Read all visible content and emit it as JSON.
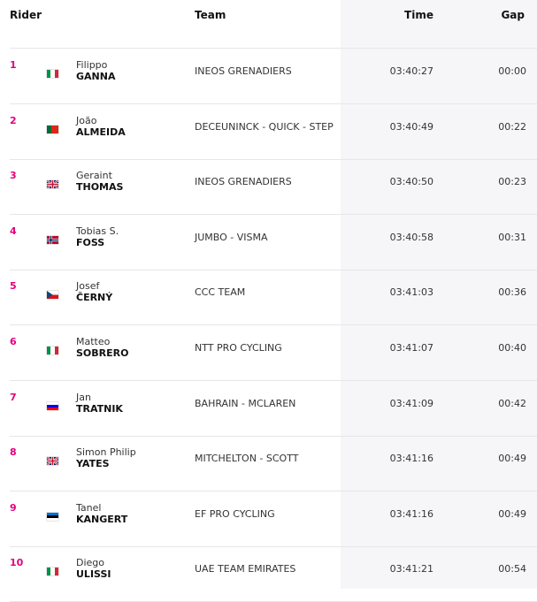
{
  "headers": {
    "rider": "Rider",
    "team": "Team",
    "time": "Time",
    "gap": "Gap"
  },
  "rows": [
    {
      "pos": "1",
      "first": "Filippo",
      "last": "GANNA",
      "flag": "italy-flag-icon",
      "team": "INEOS GRENADIERS",
      "time": "03:40:27",
      "gap": "00:00"
    },
    {
      "pos": "2",
      "first": "João",
      "last": "ALMEIDA",
      "flag": "portugal-flag-icon",
      "team": "DECEUNINCK - QUICK - STEP",
      "time": "03:40:49",
      "gap": "00:22"
    },
    {
      "pos": "3",
      "first": "Geraint",
      "last": "THOMAS",
      "flag": "uk-flag-icon",
      "team": "INEOS GRENADIERS",
      "time": "03:40:50",
      "gap": "00:23"
    },
    {
      "pos": "4",
      "first": "Tobias S.",
      "last": "FOSS",
      "flag": "norway-flag-icon",
      "team": "JUMBO - VISMA",
      "time": "03:40:58",
      "gap": "00:31"
    },
    {
      "pos": "5",
      "first": "Josef",
      "last": "ČERNÝ",
      "flag": "czech-flag-icon",
      "team": "CCC TEAM",
      "time": "03:41:03",
      "gap": "00:36"
    },
    {
      "pos": "6",
      "first": "Matteo",
      "last": "SOBRERO",
      "flag": "italy-flag-icon",
      "team": "NTT PRO CYCLING",
      "time": "03:41:07",
      "gap": "00:40"
    },
    {
      "pos": "7",
      "first": "Jan",
      "last": "TRATNIK",
      "flag": "slovenia-flag-icon",
      "team": "BAHRAIN - MCLAREN",
      "time": "03:41:09",
      "gap": "00:42"
    },
    {
      "pos": "8",
      "first": "Simon Philip",
      "last": "YATES",
      "flag": "uk-flag-icon",
      "team": "MITCHELTON - SCOTT",
      "time": "03:41:16",
      "gap": "00:49"
    },
    {
      "pos": "9",
      "first": "Tanel",
      "last": "KANGERT",
      "flag": "estonia-flag-icon",
      "team": "EF PRO CYCLING",
      "time": "03:41:16",
      "gap": "00:49"
    },
    {
      "pos": "10",
      "first": "Diego",
      "last": "ULISSI",
      "flag": "italy-flag-icon",
      "team": "UAE TEAM EMIRATES",
      "time": "03:41:21",
      "gap": "00:54"
    }
  ],
  "colors": {
    "position": "#e4007c",
    "shade": "#f6f6f9",
    "divider": "#e6e6ea"
  }
}
